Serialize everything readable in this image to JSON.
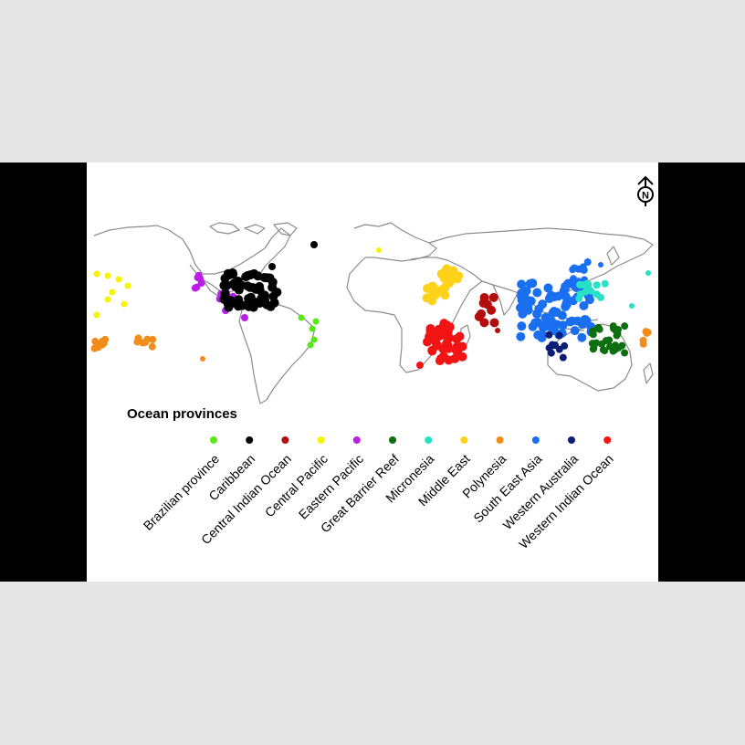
{
  "legend": {
    "title": "Ocean provinces",
    "items": [
      {
        "label": "Brazilian province",
        "color": "#59e817"
      },
      {
        "label": "Caribbean",
        "color": "#000000"
      },
      {
        "label": "Central Indian Ocean",
        "color": "#b30d0d"
      },
      {
        "label": "Central Pacific",
        "color": "#f5f500"
      },
      {
        "label": "Eastern Pacific",
        "color": "#b81ee6"
      },
      {
        "label": "Great Barrier Reef",
        "color": "#0f6e0f"
      },
      {
        "label": "Micronesia",
        "color": "#26e0c7"
      },
      {
        "label": "Middle East",
        "color": "#ffd21a"
      },
      {
        "label": "Polynesia",
        "color": "#f28c1a"
      },
      {
        "label": "South East Asia",
        "color": "#1a6ff0"
      },
      {
        "label": "Western Australia",
        "color": "#0a1e78"
      },
      {
        "label": "Western Indian Ocean",
        "color": "#f21414"
      }
    ]
  },
  "compass": {
    "letter": "N",
    "icon": "north-arrow-icon"
  }
}
